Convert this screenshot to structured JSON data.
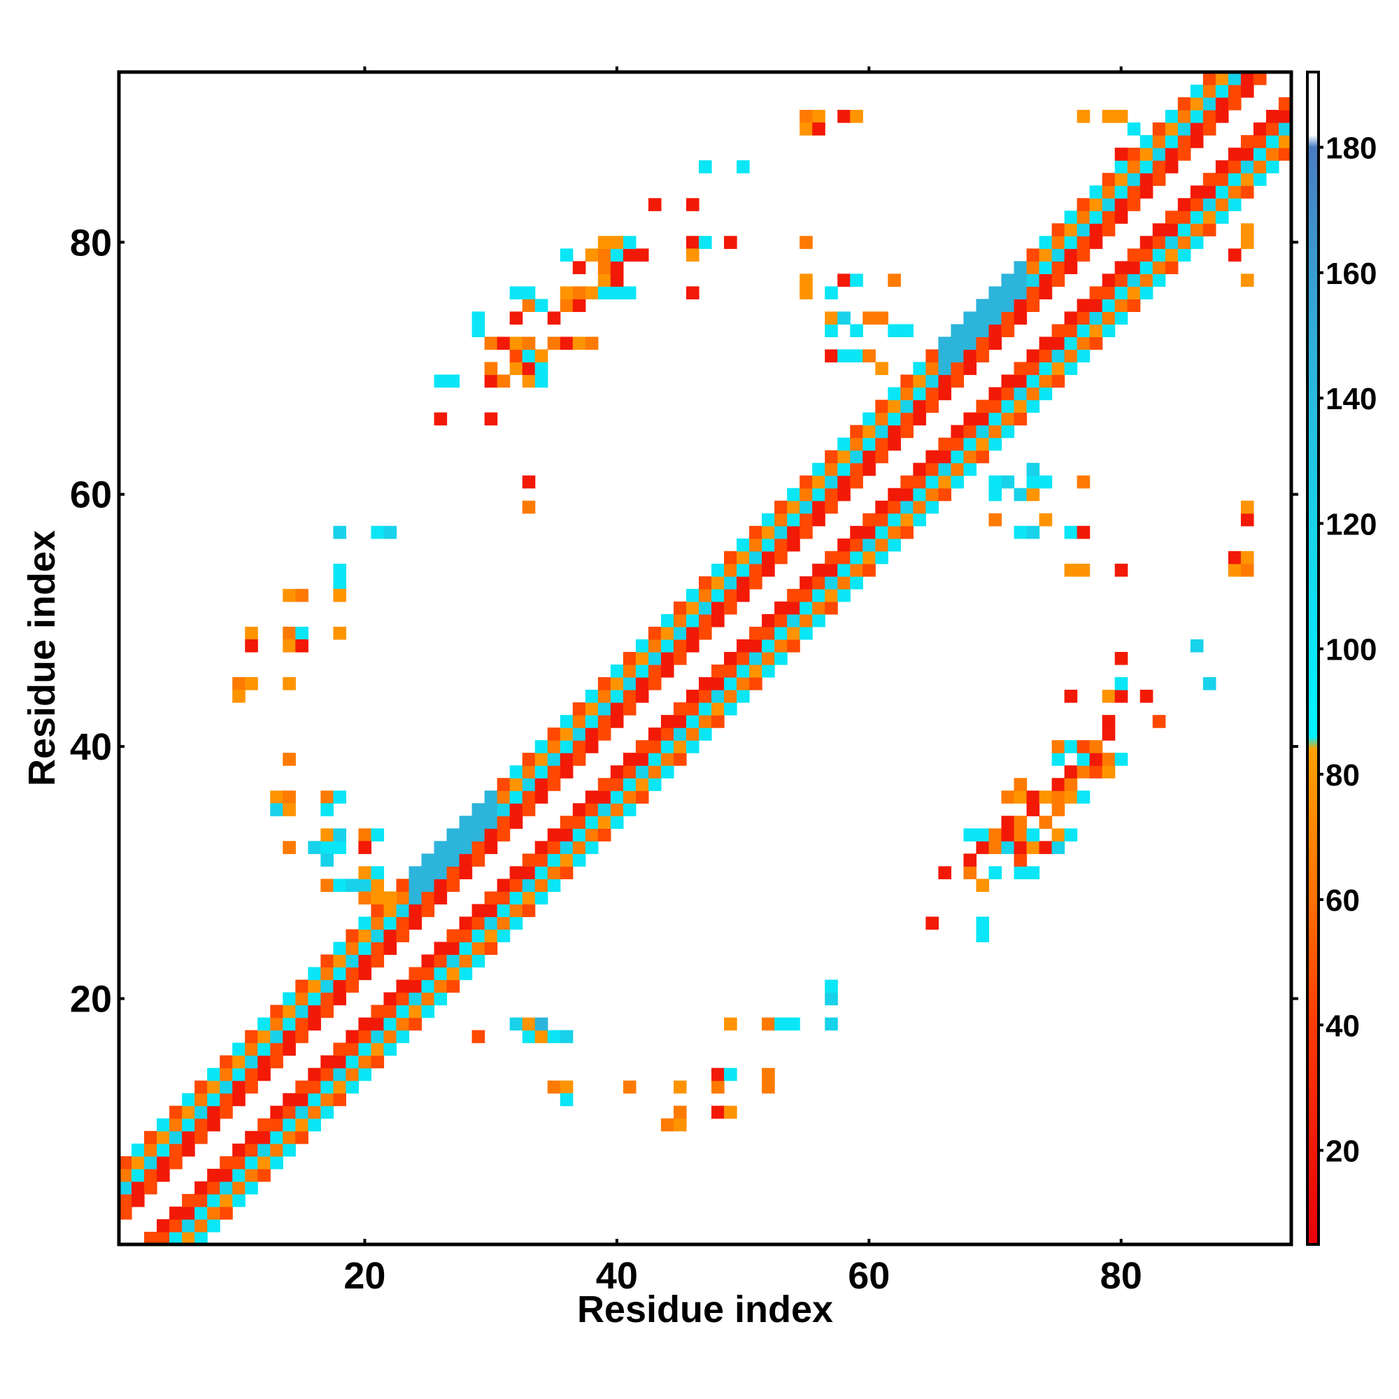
{
  "chart_data": {
    "type": "heatmap",
    "title": "",
    "xlabel": "Residue index",
    "ylabel": "Residue index",
    "xlim": [
      0.5,
      93.5
    ],
    "ylim": [
      0.5,
      93.5
    ],
    "x_ticks": [
      20,
      40,
      60,
      80
    ],
    "y_ticks": [
      20,
      40,
      60,
      80
    ],
    "colorbar": {
      "range": [
        5,
        192
      ],
      "ticks": [
        20,
        40,
        60,
        80,
        100,
        120,
        140,
        160,
        180
      ],
      "stops": [
        {
          "value": 5,
          "color": "#e8000b"
        },
        {
          "value": 40,
          "color": "#ff3a00"
        },
        {
          "value": 60,
          "color": "#ff7000"
        },
        {
          "value": 84,
          "color": "#ffa000"
        },
        {
          "value": 86,
          "color": "#00f4ff"
        },
        {
          "value": 120,
          "color": "#18d2ea"
        },
        {
          "value": 150,
          "color": "#30aed8"
        },
        {
          "value": 180,
          "color": "#4a7cc0"
        },
        {
          "value": 182,
          "color": "#ffffff"
        },
        {
          "value": 192,
          "color": "#ffffff"
        }
      ]
    },
    "value_encoding": {
      "red": 20,
      "orange-red": 45,
      "orange": 65,
      "amber": 78,
      "cyan": 100,
      "light-blue": 120,
      "blue": 145,
      "steel-blue": 170
    },
    "diagonal_band": {
      "min_offset": 2,
      "max_offset": 6,
      "x_range": [
        1,
        93
      ]
    },
    "off_diagonal_contacts": [
      [
        44,
        10,
        65
      ],
      [
        45,
        10,
        78
      ],
      [
        45,
        11,
        65
      ],
      [
        48,
        11,
        20
      ],
      [
        49,
        11,
        78
      ],
      [
        35,
        13,
        65
      ],
      [
        36,
        13,
        78
      ],
      [
        41,
        13,
        65
      ],
      [
        45,
        13,
        78
      ],
      [
        48,
        13,
        65
      ],
      [
        52,
        13,
        65
      ],
      [
        36,
        12,
        100
      ],
      [
        48,
        14,
        20
      ],
      [
        49,
        14,
        100
      ],
      [
        52,
        14,
        65
      ],
      [
        29,
        17,
        45
      ],
      [
        33,
        17,
        100
      ],
      [
        34,
        17,
        78
      ],
      [
        35,
        17,
        100
      ],
      [
        36,
        17,
        120
      ],
      [
        32,
        18,
        120
      ],
      [
        33,
        18,
        78
      ],
      [
        34,
        18,
        145
      ],
      [
        49,
        18,
        78
      ],
      [
        52,
        18,
        65
      ],
      [
        53,
        18,
        100
      ],
      [
        54,
        18,
        100
      ],
      [
        57,
        18,
        120
      ],
      [
        57,
        20,
        120
      ],
      [
        57,
        21,
        100
      ],
      [
        65,
        26,
        20
      ],
      [
        69,
        26,
        100
      ],
      [
        69,
        25,
        100
      ],
      [
        66,
        30,
        20
      ],
      [
        69,
        29,
        78
      ],
      [
        68,
        30,
        65
      ],
      [
        70,
        30,
        100
      ],
      [
        72,
        30,
        100
      ],
      [
        73,
        30,
        100
      ],
      [
        72,
        31,
        45
      ],
      [
        68,
        31,
        20
      ],
      [
        69,
        32,
        20
      ],
      [
        70,
        32,
        65
      ],
      [
        71,
        32,
        120
      ],
      [
        72,
        32,
        20
      ],
      [
        73,
        32,
        78
      ],
      [
        74,
        32,
        20
      ],
      [
        75,
        32,
        120
      ],
      [
        68,
        33,
        100
      ],
      [
        69,
        33,
        100
      ],
      [
        70,
        33,
        65
      ],
      [
        71,
        33,
        20
      ],
      [
        72,
        33,
        65
      ],
      [
        73,
        33,
        100
      ],
      [
        75,
        33,
        78
      ],
      [
        76,
        33,
        100
      ],
      [
        71,
        34,
        20
      ],
      [
        72,
        34,
        65
      ],
      [
        74,
        34,
        65
      ],
      [
        73,
        35,
        20
      ],
      [
        75,
        35,
        65
      ],
      [
        71,
        36,
        65
      ],
      [
        72,
        36,
        78
      ],
      [
        73,
        36,
        20
      ],
      [
        74,
        36,
        78
      ],
      [
        75,
        36,
        65
      ],
      [
        76,
        36,
        78
      ],
      [
        77,
        36,
        100
      ],
      [
        72,
        37,
        65
      ],
      [
        75,
        37,
        20
      ],
      [
        76,
        37,
        65
      ],
      [
        76,
        38,
        20
      ],
      [
        77,
        38,
        65
      ],
      [
        78,
        38,
        45
      ],
      [
        79,
        38,
        78
      ],
      [
        75,
        39,
        100
      ],
      [
        77,
        39,
        100
      ],
      [
        78,
        39,
        20
      ],
      [
        79,
        39,
        65
      ],
      [
        80,
        39,
        100
      ],
      [
        75,
        40,
        65
      ],
      [
        76,
        40,
        100
      ],
      [
        77,
        40,
        45
      ],
      [
        78,
        40,
        65
      ],
      [
        79,
        41,
        20
      ],
      [
        79,
        42,
        20
      ],
      [
        83,
        42,
        45
      ],
      [
        76,
        44,
        20
      ],
      [
        79,
        44,
        78
      ],
      [
        80,
        44,
        20
      ],
      [
        82,
        44,
        20
      ],
      [
        80,
        45,
        100
      ],
      [
        87,
        45,
        120
      ],
      [
        80,
        47,
        20
      ],
      [
        86,
        48,
        120
      ],
      [
        80,
        54,
        20
      ],
      [
        76,
        54,
        78
      ],
      [
        77,
        54,
        78
      ],
      [
        89,
        54,
        78
      ],
      [
        90,
        54,
        65
      ],
      [
        89,
        55,
        20
      ],
      [
        90,
        55,
        78
      ],
      [
        72,
        57,
        100
      ],
      [
        73,
        57,
        120
      ],
      [
        76,
        57,
        100
      ],
      [
        77,
        57,
        20
      ],
      [
        90,
        58,
        20
      ],
      [
        90,
        59,
        78
      ],
      [
        70,
        58,
        65
      ],
      [
        74,
        58,
        78
      ],
      [
        70,
        60,
        100
      ],
      [
        72,
        60,
        120
      ],
      [
        73,
        60,
        78
      ],
      [
        70,
        61,
        100
      ],
      [
        71,
        61,
        120
      ],
      [
        73,
        61,
        100
      ],
      [
        74,
        61,
        100
      ],
      [
        73,
        62,
        120
      ],
      [
        77,
        61,
        65
      ],
      [
        33,
        59,
        65
      ],
      [
        33,
        61,
        20
      ],
      [
        18,
        57,
        120
      ],
      [
        21,
        57,
        100
      ],
      [
        22,
        57,
        120
      ],
      [
        18,
        54,
        100
      ],
      [
        18,
        53,
        100
      ],
      [
        18,
        52,
        78
      ],
      [
        14,
        52,
        78
      ],
      [
        15,
        52,
        65
      ],
      [
        11,
        49,
        78
      ],
      [
        11,
        48,
        20
      ],
      [
        14,
        49,
        65
      ],
      [
        15,
        49,
        100
      ],
      [
        14,
        48,
        78
      ],
      [
        15,
        48,
        20
      ],
      [
        18,
        49,
        78
      ],
      [
        10,
        45,
        65
      ],
      [
        11,
        45,
        78
      ],
      [
        10,
        44,
        78
      ],
      [
        14,
        45,
        78
      ],
      [
        14,
        39,
        65
      ],
      [
        13,
        36,
        78
      ],
      [
        14,
        36,
        65
      ],
      [
        13,
        35,
        120
      ],
      [
        14,
        35,
        78
      ],
      [
        17,
        36,
        65
      ],
      [
        18,
        36,
        100
      ],
      [
        17,
        35,
        100
      ],
      [
        14,
        32,
        65
      ],
      [
        16,
        32,
        120
      ],
      [
        17,
        32,
        100
      ],
      [
        18,
        32,
        100
      ],
      [
        17,
        33,
        78
      ],
      [
        18,
        33,
        120
      ],
      [
        20,
        33,
        65
      ],
      [
        21,
        33,
        100
      ],
      [
        17,
        31,
        120
      ],
      [
        20,
        32,
        20
      ],
      [
        17,
        29,
        65
      ],
      [
        18,
        29,
        100
      ],
      [
        19,
        29,
        120
      ],
      [
        20,
        29,
        120
      ],
      [
        21,
        29,
        78
      ],
      [
        20,
        30,
        78
      ],
      [
        21,
        30,
        100
      ],
      [
        20,
        28,
        65
      ],
      [
        21,
        28,
        78
      ],
      [
        22,
        28,
        78
      ],
      [
        26,
        66,
        20
      ],
      [
        30,
        66,
        20
      ],
      [
        26,
        69,
        100
      ],
      [
        27,
        69,
        100
      ],
      [
        30,
        69,
        20
      ],
      [
        31,
        69,
        65
      ],
      [
        33,
        69,
        78
      ],
      [
        34,
        69,
        100
      ],
      [
        30,
        70,
        65
      ],
      [
        32,
        70,
        78
      ],
      [
        33,
        70,
        20
      ],
      [
        34,
        70,
        100
      ],
      [
        32,
        71,
        45
      ],
      [
        33,
        71,
        100
      ],
      [
        34,
        71,
        78
      ],
      [
        29,
        73,
        100
      ],
      [
        30,
        72,
        65
      ],
      [
        31,
        72,
        20
      ],
      [
        32,
        72,
        78
      ],
      [
        33,
        72,
        65
      ],
      [
        35,
        72,
        65
      ],
      [
        36,
        72,
        20
      ],
      [
        37,
        72,
        78
      ],
      [
        38,
        72,
        65
      ],
      [
        29,
        74,
        100
      ],
      [
        32,
        74,
        20
      ],
      [
        35,
        74,
        20
      ],
      [
        33,
        75,
        65
      ],
      [
        34,
        75,
        100
      ],
      [
        36,
        75,
        65
      ],
      [
        37,
        75,
        20
      ],
      [
        36,
        76,
        78
      ],
      [
        37,
        76,
        65
      ],
      [
        38,
        76,
        78
      ],
      [
        32,
        76,
        100
      ],
      [
        33,
        76,
        100
      ],
      [
        39,
        76,
        100
      ],
      [
        40,
        76,
        100
      ],
      [
        39,
        77,
        78
      ],
      [
        40,
        77,
        20
      ],
      [
        41,
        76,
        100
      ],
      [
        37,
        78,
        20
      ],
      [
        39,
        78,
        65
      ],
      [
        40,
        78,
        20
      ],
      [
        36,
        79,
        100
      ],
      [
        38,
        79,
        78
      ],
      [
        39,
        79,
        65
      ],
      [
        40,
        79,
        100
      ],
      [
        41,
        79,
        20
      ],
      [
        42,
        79,
        20
      ],
      [
        39,
        80,
        78
      ],
      [
        40,
        80,
        78
      ],
      [
        41,
        80,
        100
      ],
      [
        43,
        83,
        20
      ],
      [
        46,
        83,
        20
      ],
      [
        46,
        80,
        20
      ],
      [
        47,
        80,
        100
      ],
      [
        49,
        80,
        20
      ],
      [
        46,
        79,
        78
      ],
      [
        46,
        76,
        20
      ],
      [
        55,
        80,
        65
      ],
      [
        55,
        77,
        78
      ],
      [
        55,
        76,
        78
      ],
      [
        47,
        86,
        100
      ],
      [
        50,
        86,
        100
      ],
      [
        55,
        90,
        65
      ],
      [
        56,
        90,
        78
      ],
      [
        55,
        89,
        78
      ],
      [
        56,
        89,
        20
      ],
      [
        58,
        90,
        20
      ],
      [
        59,
        90,
        78
      ],
      [
        57,
        73,
        100
      ],
      [
        57,
        74,
        78
      ],
      [
        58,
        74,
        120
      ],
      [
        59,
        73,
        100
      ],
      [
        60,
        74,
        65
      ],
      [
        61,
        74,
        65
      ],
      [
        62,
        73,
        100
      ],
      [
        63,
        73,
        100
      ],
      [
        57,
        71,
        20
      ],
      [
        58,
        71,
        100
      ],
      [
        59,
        71,
        100
      ],
      [
        60,
        71,
        65
      ],
      [
        61,
        70,
        78
      ],
      [
        58,
        77,
        20
      ],
      [
        59,
        77,
        100
      ],
      [
        57,
        76,
        100
      ],
      [
        62,
        77,
        65
      ],
      [
        77,
        90,
        78
      ],
      [
        79,
        90,
        78
      ],
      [
        80,
        90,
        78
      ],
      [
        81,
        89,
        100
      ],
      [
        80,
        87,
        20
      ],
      [
        90,
        80,
        78
      ],
      [
        90,
        81,
        78
      ],
      [
        90,
        77,
        78
      ],
      [
        89,
        79,
        20
      ]
    ]
  }
}
